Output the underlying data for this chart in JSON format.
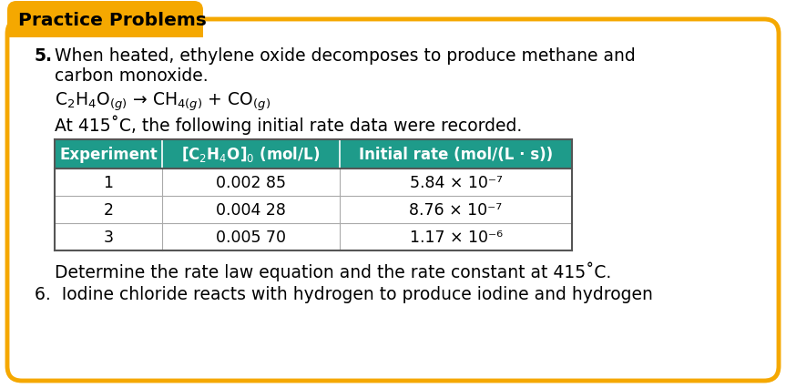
{
  "bg_color": "#ffffff",
  "outer_border_color": "#F5A800",
  "tab_bg_color": "#F5A800",
  "tab_text": "Practice Problems",
  "tab_text_color": "#000000",
  "problem_number": "5.",
  "problem_text_line1": "When heated, ethylene oxide decomposes to produce methane and",
  "problem_text_line2": "carbon monoxide.",
  "at_line": "At 415˚C, the following initial rate data were recorded.",
  "col_headers": [
    "Experiment",
    "[C₂H₄O]₀ (mol/L)",
    "Initial rate (mol/(L · s))"
  ],
  "table_data": [
    [
      "1",
      "0.002 85",
      "5.84 × 10⁻⁷"
    ],
    [
      "2",
      "0.004 28",
      "8.76 × 10⁻⁷"
    ],
    [
      "3",
      "0.005 70",
      "1.17 × 10⁻⁶"
    ]
  ],
  "determine_text": "Determine the rate law equation and the rate constant at 415˚C.",
  "problem6_text": "6.  Iodine chloride reacts with hydrogen to produce iodine and hydrogen",
  "table_header_color": "#1E9B8A",
  "font_size_body": 13.5,
  "font_size_tab": 14.5,
  "font_size_table_header": 12,
  "font_size_table_body": 12.5
}
